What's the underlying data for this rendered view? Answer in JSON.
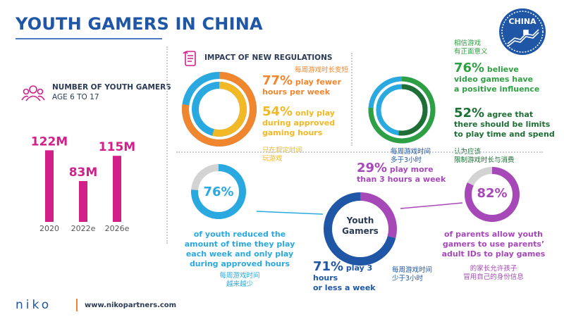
{
  "title": "YOUTH GAMERS IN CHINA",
  "badge": "CHINA",
  "regulations_header": "IMPACT OF NEW REGULATIONS",
  "gamers_header": "NUMBER OF YOUTH GAMERS",
  "gamers_sub": "AGE 6 TO 17",
  "footer": {
    "logo": "niko",
    "url": "www.nikopartners.com"
  },
  "texts": {
    "play_fewer_cn": "每周游戏时长变短",
    "play_fewer_pct": "77%",
    "play_fewer_l1": " play fewer",
    "play_fewer_l2": "hours per week",
    "approved_pct": "54%",
    "approved_l1": " only play",
    "approved_l2": "during approved",
    "approved_l3": "gaming hours",
    "approved_cn1": "只在规定时间",
    "approved_cn2": "玩游戏",
    "believe_cn1": "相信游戏",
    "believe_cn2": "有正面意义",
    "believe_pct": "76%",
    "believe_l1": " believe",
    "believe_l2": "video games have",
    "believe_l3": "a positive influence",
    "limits_pct": "52%",
    "limits_l1": " agree that",
    "limits_l2": "there should be limits",
    "limits_l3": "to play time and spend",
    "limits_cn1": "认为应该",
    "limits_cn2": "限制游戏时长与消费",
    "more3_cn1": "每周游戏时间",
    "more3_cn2": "多于3小时",
    "more3_pct": "29%",
    "more3_l1": " play more",
    "more3_l2": "than 3 hours a week",
    "reduced_pct": "76%",
    "reduced_l1": "of youth reduced the",
    "reduced_l2": "amount of time they play",
    "reduced_l3": "each week and only play",
    "reduced_l4": "during approved hours",
    "reduced_cn1": "每周游戏时间",
    "reduced_cn2": "越来越少",
    "center_label_1": "Youth",
    "center_label_2": "Gamers",
    "less3_pct": "71%",
    "less3_l1": " play 3 hours",
    "less3_l2": "or less a week",
    "less3_cn1": "每周游戏时间",
    "less3_cn2": "少于3小时",
    "parents_pct": "82%",
    "parents_l1": "of parents allow youth",
    "parents_l2": "gamers to use parents’",
    "parents_l3": "adult IDs to play games",
    "parents_cn1": "的家长允许孩子",
    "parents_cn2": "冒用自己的身份信息"
  },
  "chart_data": [
    {
      "type": "bar",
      "title": "NUMBER OF YOUTH GAMERS",
      "subtitle": "AGE 6 TO 17",
      "categories": [
        "2020",
        "2022e",
        "2026e"
      ],
      "values": [
        122,
        83,
        115
      ],
      "value_labels": [
        "122M",
        "83M",
        "115M"
      ],
      "unit": "M",
      "color": "#d21f8a"
    },
    {
      "type": "pie",
      "series": [
        {
          "name": "",
          "values": [
            77,
            23
          ]
        }
      ],
      "color": "#f0862e"
    },
    {
      "type": "pie",
      "series": [
        {
          "name": "",
          "values": [
            54,
            46
          ]
        }
      ],
      "color": "#f2b825"
    },
    {
      "type": "pie",
      "series": [
        {
          "name": "",
          "values": [
            76,
            24
          ]
        }
      ],
      "color": "#2f9f43"
    },
    {
      "type": "pie",
      "series": [
        {
          "name": "",
          "values": [
            52,
            48
          ]
        }
      ],
      "color": "#2f9f43"
    },
    {
      "type": "pie",
      "series": [
        {
          "name": "",
          "values": [
            76,
            24
          ]
        }
      ],
      "color": "#2aa9e0"
    },
    {
      "type": "pie",
      "series": [
        {
          "name": "",
          "values": [
            71,
            29
          ]
        }
      ],
      "colors": [
        "#1f57a6",
        "#a648b8"
      ]
    },
    {
      "type": "pie",
      "series": [
        {
          "name": "",
          "values": [
            82,
            18
          ]
        }
      ],
      "color": "#a648b8"
    }
  ],
  "colors": {
    "title": "#1f57a6",
    "bar": "#d21f8a",
    "orange": "#f0862e",
    "yellow": "#f2b825",
    "green": "#2f9f43",
    "blue": "#2aa9e0",
    "navy": "#1f57a6",
    "purple": "#a648b8",
    "track": "#d3d3d3"
  },
  "icons": {
    "regulations": "scroll-icon",
    "gamers": "group-icon",
    "badge": "great-wall-icon"
  }
}
